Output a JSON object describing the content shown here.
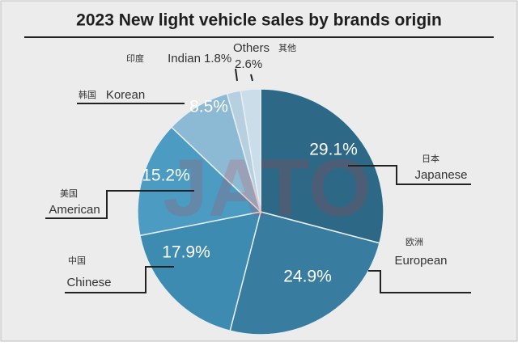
{
  "chart_data": {
    "type": "pie",
    "title": "2023 New light vehicle sales by brands origin",
    "watermark": "JATO",
    "categories": [
      "Japanese",
      "European",
      "Chinese",
      "American",
      "Korean",
      "Indian",
      "Others"
    ],
    "categories_local": [
      "日本",
      "欧洲",
      "中国",
      "美国",
      "韩国",
      "印度",
      "其他"
    ],
    "values": [
      29.1,
      24.9,
      17.9,
      15.2,
      8.5,
      1.8,
      2.6
    ],
    "value_labels": [
      "29.1%",
      "24.9%",
      "17.9%",
      "15.2%",
      "8.5%",
      "1.8%",
      "2.6%"
    ],
    "colors": [
      "#2d6886",
      "#387c9f",
      "#3e8bb1",
      "#4b9bc3",
      "#8cb9d3",
      "#b7d0e0",
      "#cbdde9"
    ]
  }
}
